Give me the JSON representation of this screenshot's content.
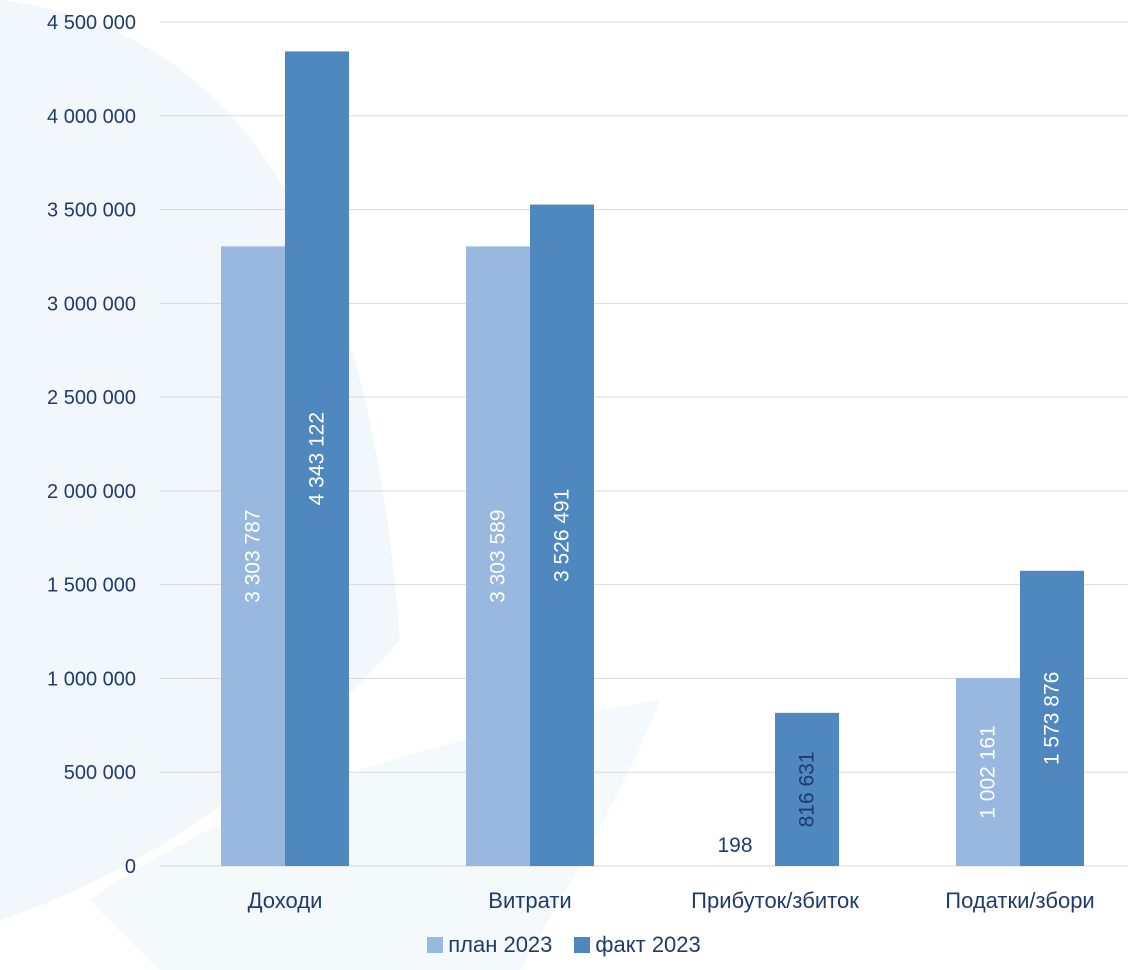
{
  "chart_data": {
    "type": "bar",
    "categories": [
      "Доходи",
      "Витрати",
      "Прибуток/збиток",
      "Податки/збори"
    ],
    "series": [
      {
        "name": "план 2023",
        "color": "#98b8df",
        "values": [
          3303787,
          3303589,
          198,
          1002161
        ],
        "labels": [
          "3 303 787",
          "3 303 589",
          "198",
          "1 002 161"
        ]
      },
      {
        "name": "факт 2023",
        "color": "#4f87bf",
        "values": [
          4343122,
          3526491,
          816631,
          1573876
        ],
        "labels": [
          "4 343 122",
          "3 526 491",
          "816 631",
          "1 573 876"
        ]
      }
    ],
    "ylim": [
      0,
      4500000
    ],
    "yticks": [
      0,
      500000,
      1000000,
      1500000,
      2000000,
      2500000,
      3000000,
      3500000,
      4000000,
      4500000
    ],
    "ytick_labels": [
      "0",
      "500 000",
      "1 000 000",
      "1 500 000",
      "2 000 000",
      "2 500 000",
      "3 000 000",
      "3 500 000",
      "4 000 000",
      "4 500 000"
    ],
    "grid": true,
    "legend_position": "bottom"
  }
}
